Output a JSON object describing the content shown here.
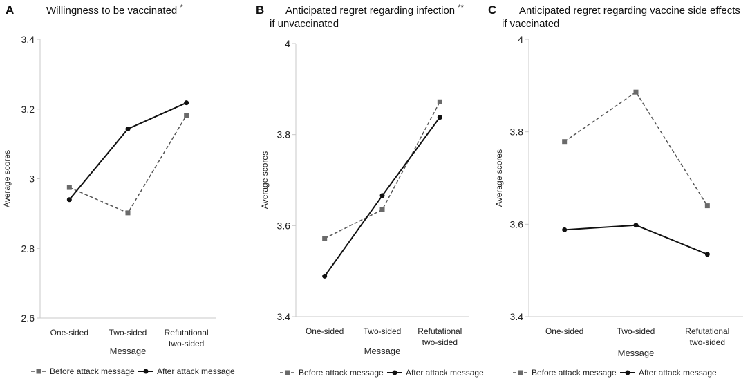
{
  "chart_data": [
    {
      "type": "line",
      "panel": "A",
      "title": "Willingness to be vaccinated",
      "title_mark": "*",
      "categories": [
        "One-sided",
        "Two-sided",
        "Refutational two-sided"
      ],
      "category_lines": [
        [
          "One-sided"
        ],
        [
          "Two-sided"
        ],
        [
          "Refutational",
          "two-sided"
        ]
      ],
      "series": [
        {
          "name": "Before attack message",
          "style": "dashed",
          "marker": "square",
          "color": "#555555",
          "values": [
            2.975,
            2.902,
            3.182
          ]
        },
        {
          "name": "After attack message",
          "style": "solid",
          "marker": "circle",
          "color": "#111111",
          "values": [
            2.94,
            3.143,
            3.218
          ]
        }
      ],
      "xlabel": "Message",
      "ylabel": "Average scores",
      "ylim": [
        2.6,
        3.4
      ],
      "yticks": [
        "2.6",
        "2.8",
        "3",
        "3.2",
        "3.4"
      ]
    },
    {
      "type": "line",
      "panel": "B",
      "title": "Anticipated regret regarding infection",
      "title_mark": "**",
      "title_line2": "if unvaccinated",
      "categories": [
        "One-sided",
        "Two-sided",
        "Refutational two-sided"
      ],
      "category_lines": [
        [
          "One-sided"
        ],
        [
          "Two-sided"
        ],
        [
          "Refutational",
          "two-sided"
        ]
      ],
      "series": [
        {
          "name": "Before attack message",
          "style": "dashed",
          "marker": "square",
          "color": "#555555",
          "values": [
            3.572,
            3.635,
            3.872
          ]
        },
        {
          "name": "After attack message",
          "style": "solid",
          "marker": "circle",
          "color": "#111111",
          "values": [
            3.489,
            3.666,
            3.838
          ]
        }
      ],
      "xlabel": "Message",
      "ylabel": "Average scores",
      "ylim": [
        3.4,
        4.0
      ],
      "yticks": [
        "3.4",
        "3.6",
        "3.8",
        "4"
      ]
    },
    {
      "type": "line",
      "panel": "C",
      "title": "Anticipated regret regarding vaccine side effects",
      "title_mark": "",
      "title_line2": "if vaccinated",
      "categories": [
        "One-sided",
        "Two-sided",
        "Refutational two-sided"
      ],
      "category_lines": [
        [
          "One-sided"
        ],
        [
          "Two-sided"
        ],
        [
          "Refutational",
          "two-sided"
        ]
      ],
      "series": [
        {
          "name": "Before attack message",
          "style": "dashed",
          "marker": "square",
          "color": "#555555",
          "values": [
            3.779,
            3.886,
            3.64
          ]
        },
        {
          "name": "After attack message",
          "style": "solid",
          "marker": "circle",
          "color": "#111111",
          "values": [
            3.588,
            3.598,
            3.535
          ]
        }
      ],
      "xlabel": "Message",
      "ylabel": "Average scores",
      "ylim": [
        3.4,
        4.0
      ],
      "yticks": [
        "3.4",
        "3.6",
        "3.8",
        "4"
      ]
    }
  ]
}
